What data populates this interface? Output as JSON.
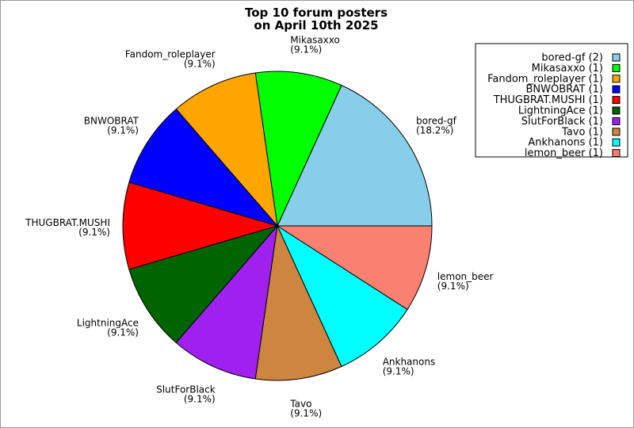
{
  "chart_data": {
    "type": "pie",
    "title": [
      "Top 10 forum posters",
      "on April 10th 2025"
    ],
    "slices": [
      {
        "name": "bored-gf",
        "count": 2,
        "percent_label": "(18.2%)",
        "color": "#87ceeb"
      },
      {
        "name": "Mikasaxxo",
        "count": 1,
        "percent_label": "(9.1%)",
        "color": "#00ff00"
      },
      {
        "name": "Fandom_roleplayer",
        "count": 1,
        "percent_label": "(9.1%)",
        "color": "#ffa500"
      },
      {
        "name": "BNWOBRAT",
        "count": 1,
        "percent_label": "(9.1%)",
        "color": "#0000ff"
      },
      {
        "name": "THUGBRAT.MUSHI",
        "count": 1,
        "percent_label": "(9.1%)",
        "color": "#ff0000"
      },
      {
        "name": "LightningAce",
        "count": 1,
        "percent_label": "(9.1%)",
        "color": "#006400"
      },
      {
        "name": "SlutForBlack",
        "count": 1,
        "percent_label": "(9.1%)",
        "color": "#a020f0"
      },
      {
        "name": "Tavo",
        "count": 1,
        "percent_label": "(9.1%)",
        "color": "#cd853f"
      },
      {
        "name": "Ankhanons",
        "count": 1,
        "percent_label": "(9.1%)",
        "color": "#00ffff"
      },
      {
        "name": "lemon_beer",
        "count": 1,
        "percent_label": "(9.1%)",
        "color": "#fa8072"
      }
    ],
    "legend": {
      "placement": "top-right",
      "entries": [
        "bored-gf (2)",
        "Mikasaxxo (1)",
        "Fandom_roleplayer (1)",
        "BNWOBRAT (1)",
        "THUGBRAT.MUSHI (1)",
        "LightningAce (1)",
        "SlutForBlack (1)",
        "Tavo (1)",
        "Ankhanons (1)",
        "lemon_beer (1)"
      ]
    }
  }
}
